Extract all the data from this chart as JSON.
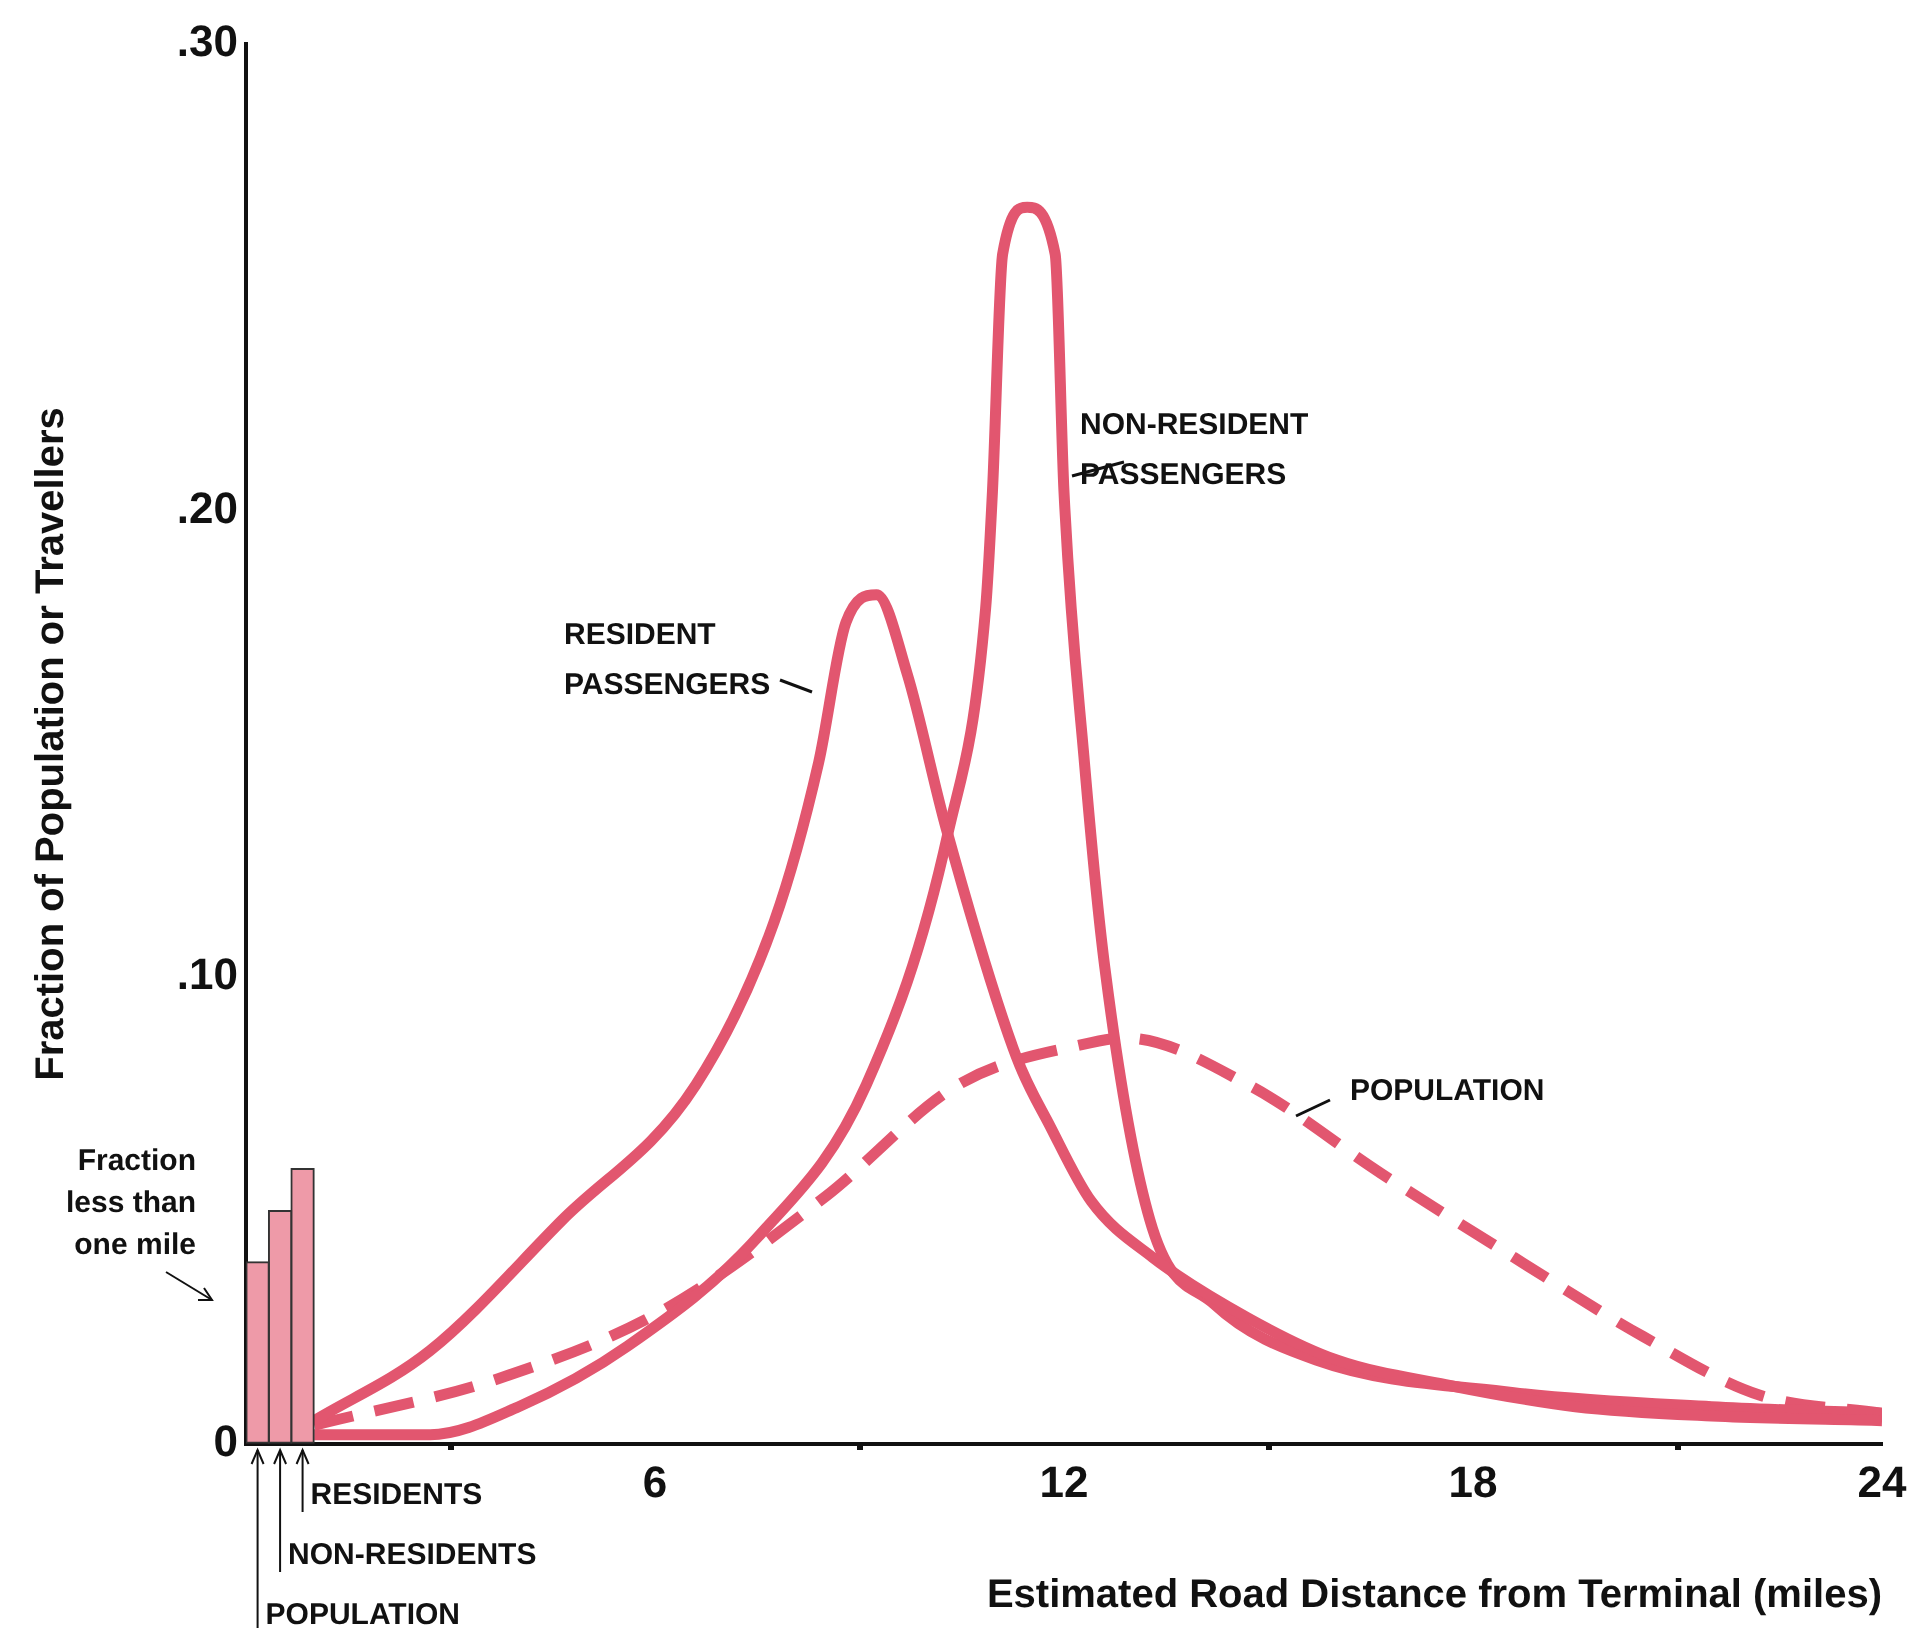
{
  "chart_data": {
    "type": "line",
    "xlabel": "Estimated Road Distance from Terminal (miles)",
    "ylabel": "Fraction of Population or Travellers",
    "xlim": [
      0,
      24
    ],
    "xticks": [
      {
        "value": 0,
        "label": null
      },
      6,
      12,
      18,
      24
    ],
    "ylim": [
      0,
      0.3
    ],
    "yticks": [
      {
        "value": 0,
        "label": "0"
      },
      {
        "value": 0.1,
        "label": ".10"
      },
      {
        "value": 0.2,
        "label": ".20"
      },
      {
        "value": 0.3,
        "label": ".30"
      }
    ],
    "grid": false,
    "legend": false,
    "marker": "none",
    "annotations": [
      "Fraction less than one mile"
    ],
    "series": [
      {
        "type": "bar",
        "name": "POPULATION",
        "color": "#ee9aa8",
        "x": [
          0.17
        ],
        "values": [
          0.039
        ]
      },
      {
        "type": "bar",
        "name": "NON-RESIDENTS",
        "color": "#ee9aa8",
        "x": [
          0.5
        ],
        "values": [
          0.05
        ]
      },
      {
        "type": "bar",
        "name": "RESIDENTS",
        "color": "#ee9aa8",
        "x": [
          0.83
        ],
        "values": [
          0.059
        ]
      },
      {
        "type": "line",
        "name": "RESIDENT PASSENGERS",
        "color": "#e2566f",
        "line_style": "solid",
        "x": [
          1,
          2.7,
          4.64,
          6.6,
          7.75,
          8.4,
          8.8,
          9.25,
          9.7,
          10.27,
          11.3,
          11.8,
          12.4,
          13.3,
          14.7,
          16,
          17.6,
          19.5,
          21.5,
          24
        ],
        "values": [
          0.005,
          0.02,
          0.048,
          0.077,
          0.112,
          0.146,
          0.176,
          0.182,
          0.165,
          0.132,
          0.083,
          0.068,
          0.052,
          0.04,
          0.027,
          0.018,
          0.0127,
          0.008,
          0.006,
          0.005
        ]
      },
      {
        "type": "line",
        "name": "NON-RESIDENT PASSENGERS",
        "color": "#e2566f",
        "line_style": "solid",
        "x": [
          1,
          2.7,
          4,
          5.6,
          7.55,
          9.1,
          10.3,
          10.85,
          10.95,
          11.1,
          11.46,
          11.87,
          12,
          12.3,
          12.6,
          13.26,
          14.2,
          15.7,
          18.6,
          21.5,
          24
        ],
        "values": [
          0.002,
          0.002,
          0.008,
          0.021,
          0.045,
          0.077,
          0.131,
          0.179,
          0.204,
          0.255,
          0.265,
          0.255,
          0.204,
          0.146,
          0.102,
          0.048,
          0.03,
          0.018,
          0.011,
          0.008,
          0.0066
        ]
      },
      {
        "type": "line",
        "name": "POPULATION",
        "color": "#e2566f",
        "line_style": "dashed",
        "x": [
          1,
          3.7,
          6.1,
          8.5,
          10.45,
          12.4,
          12.9,
          14.7,
          16.65,
          18.6,
          20.5,
          22.2,
          24
        ],
        "values": [
          0.004,
          0.014,
          0.0285,
          0.053,
          0.077,
          0.086,
          0.087,
          0.077,
          0.058,
          0.04,
          0.023,
          0.0105,
          0.0066
        ]
      }
    ]
  }
}
